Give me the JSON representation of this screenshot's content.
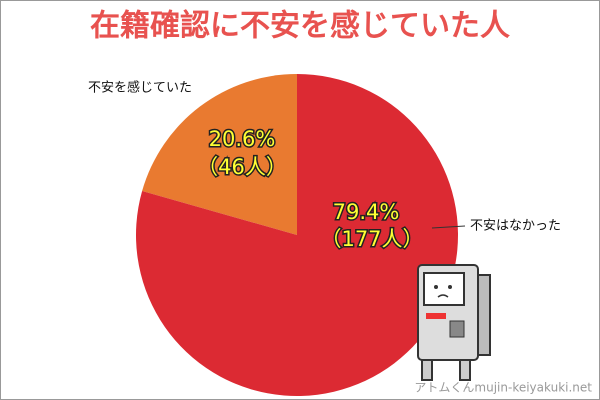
{
  "chart_data": {
    "type": "pie",
    "title": "在籍確認に不安を感じていた人",
    "categories": [
      "不安を感じていた",
      "不安はなかった"
    ],
    "values": [
      20.6,
      79.4
    ],
    "value_labels": [
      "20.6%",
      "79.4%"
    ],
    "count_labels": [
      "（46人）",
      "（177人）"
    ],
    "colors": [
      "#e97a30",
      "#dc2a33"
    ],
    "watermark": "アトムくんmujin-keiyakuki.net"
  }
}
